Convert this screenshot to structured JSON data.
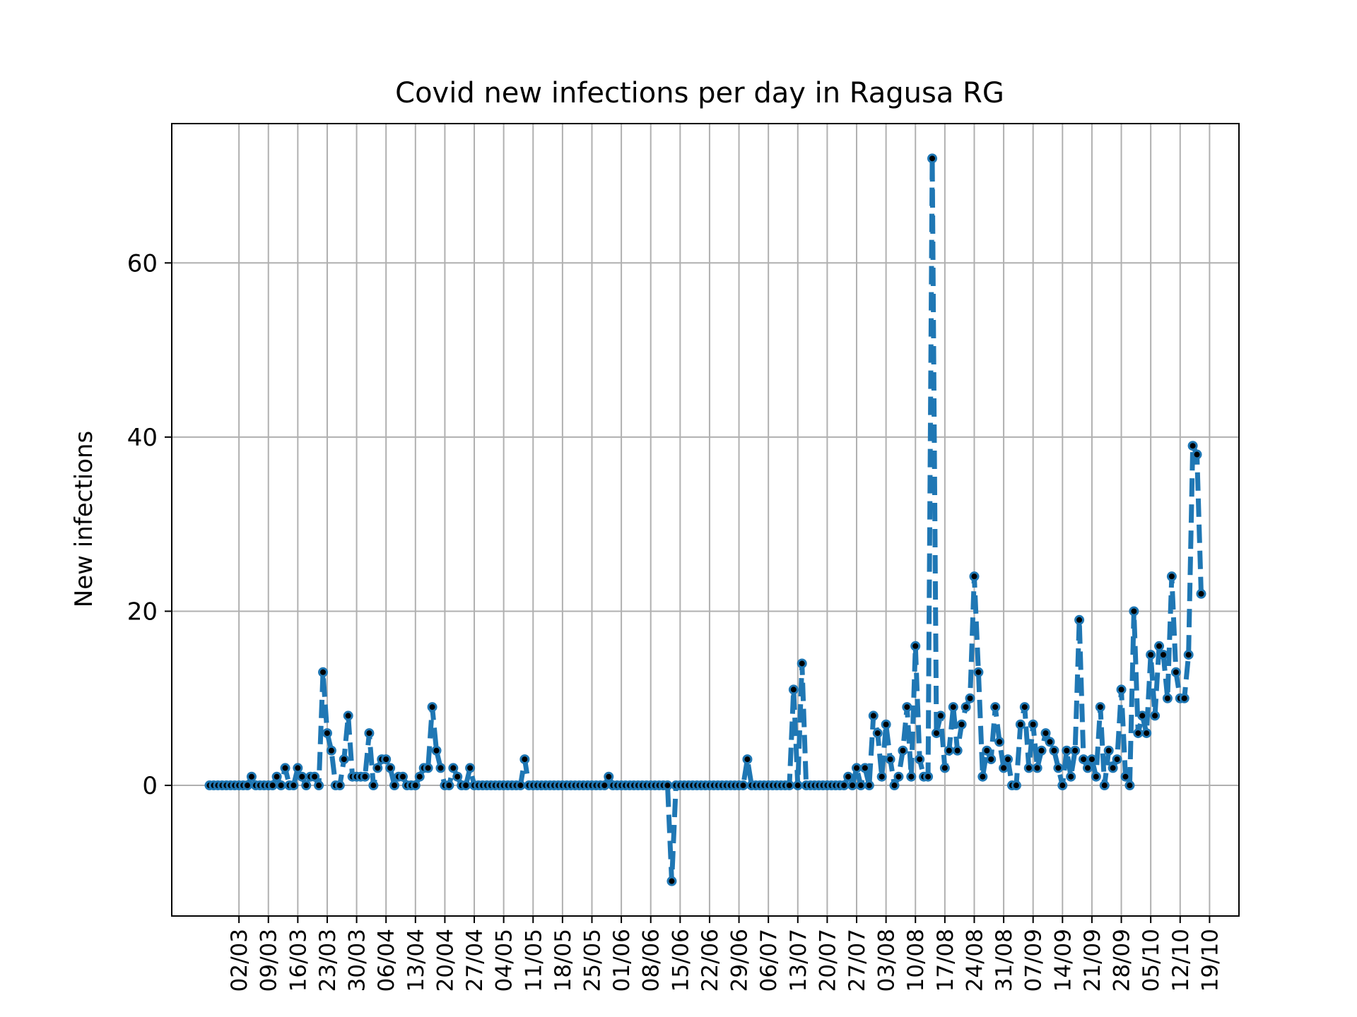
{
  "chart_data": {
    "type": "line",
    "title": "Covid new infections per day in Ragusa RG",
    "xlabel": "",
    "ylabel": "New infections",
    "x_start": "2020-02-24",
    "x_tick_labels": [
      "02/03",
      "09/03",
      "16/03",
      "23/03",
      "30/03",
      "06/04",
      "13/04",
      "20/04",
      "27/04",
      "04/05",
      "11/05",
      "18/05",
      "25/05",
      "01/06",
      "08/06",
      "15/06",
      "22/06",
      "29/06",
      "06/07",
      "13/07",
      "20/07",
      "27/07",
      "03/08",
      "10/08",
      "17/08",
      "24/08",
      "31/08",
      "07/09",
      "14/09",
      "21/09",
      "28/09",
      "05/10",
      "12/10",
      "19/10"
    ],
    "y_ticks": [
      0,
      20,
      40,
      60
    ],
    "xlim": [
      "2020-02-15",
      "2020-10-26"
    ],
    "ylim": [
      -15,
      76
    ],
    "grid": true,
    "colors": {
      "line": "#1f77b4",
      "marker": "#000000"
    },
    "series": [
      {
        "values": [
          0,
          0,
          0,
          0,
          0,
          0,
          0,
          0,
          0,
          0,
          1,
          0,
          0,
          0,
          0,
          0,
          1,
          0,
          2,
          0,
          0,
          2,
          1,
          0,
          1,
          1,
          0,
          13,
          6,
          4,
          0,
          0,
          3,
          8,
          1,
          1,
          1,
          1,
          6,
          0,
          2,
          3,
          3,
          2,
          0,
          1,
          1,
          0,
          0,
          0,
          1,
          2,
          2,
          9,
          4,
          2,
          0,
          0,
          2,
          1,
          0,
          0,
          2,
          0,
          0,
          0,
          0,
          0,
          0,
          0,
          0,
          0,
          0,
          0,
          0,
          3,
          0,
          0,
          0,
          0,
          0,
          0,
          0,
          0,
          0,
          0,
          0,
          0,
          0,
          0,
          0,
          0,
          0,
          0,
          0,
          1,
          0,
          0,
          0,
          0,
          0,
          0,
          0,
          0,
          0,
          0,
          0,
          0,
          0,
          0,
          -11,
          0,
          0,
          0,
          0,
          0,
          0,
          0,
          0,
          0,
          0,
          0,
          0,
          0,
          0,
          0,
          0,
          0,
          3,
          0,
          0,
          0,
          0,
          0,
          0,
          0,
          0,
          0,
          0,
          11,
          0,
          14,
          0,
          0,
          0,
          0,
          0,
          0,
          0,
          0,
          0,
          0,
          1,
          0,
          2,
          0,
          2,
          0,
          8,
          6,
          1,
          7,
          3,
          0,
          1,
          4,
          9,
          1,
          16,
          3,
          1,
          1,
          72,
          6,
          8,
          2,
          4,
          9,
          4,
          7,
          9,
          10,
          24,
          13,
          1,
          4,
          3,
          9,
          5,
          2,
          3,
          0,
          0,
          7,
          9,
          2,
          7,
          2,
          4,
          6,
          5,
          4,
          2,
          0,
          4,
          1,
          4,
          19,
          3,
          2,
          3,
          1,
          9,
          0,
          4,
          2,
          3,
          11,
          1,
          0,
          20,
          6,
          8,
          6,
          15,
          8,
          16,
          15,
          10,
          24,
          13,
          10,
          10,
          15,
          39,
          38,
          22
        ]
      }
    ]
  }
}
